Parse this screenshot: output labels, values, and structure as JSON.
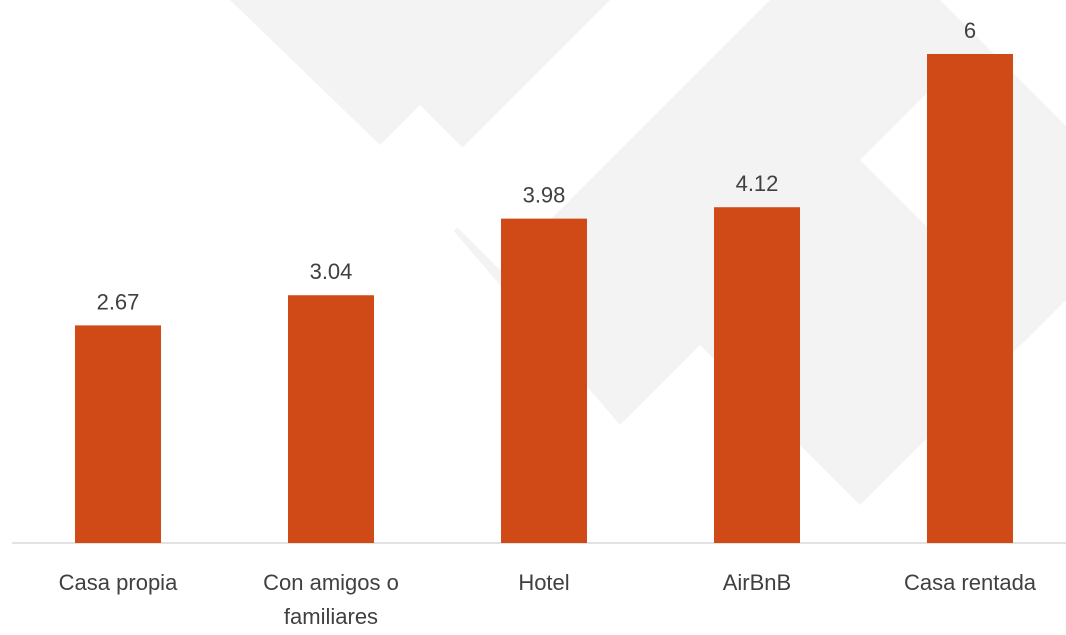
{
  "chart_data": {
    "type": "bar",
    "categories": [
      "Casa propia",
      "Con amigos o familiares",
      "Hotel",
      "AirBnB",
      "Casa rentada"
    ],
    "values": [
      2.67,
      3.04,
      3.98,
      4.12,
      6
    ],
    "color": "#d04a17"
  }
}
